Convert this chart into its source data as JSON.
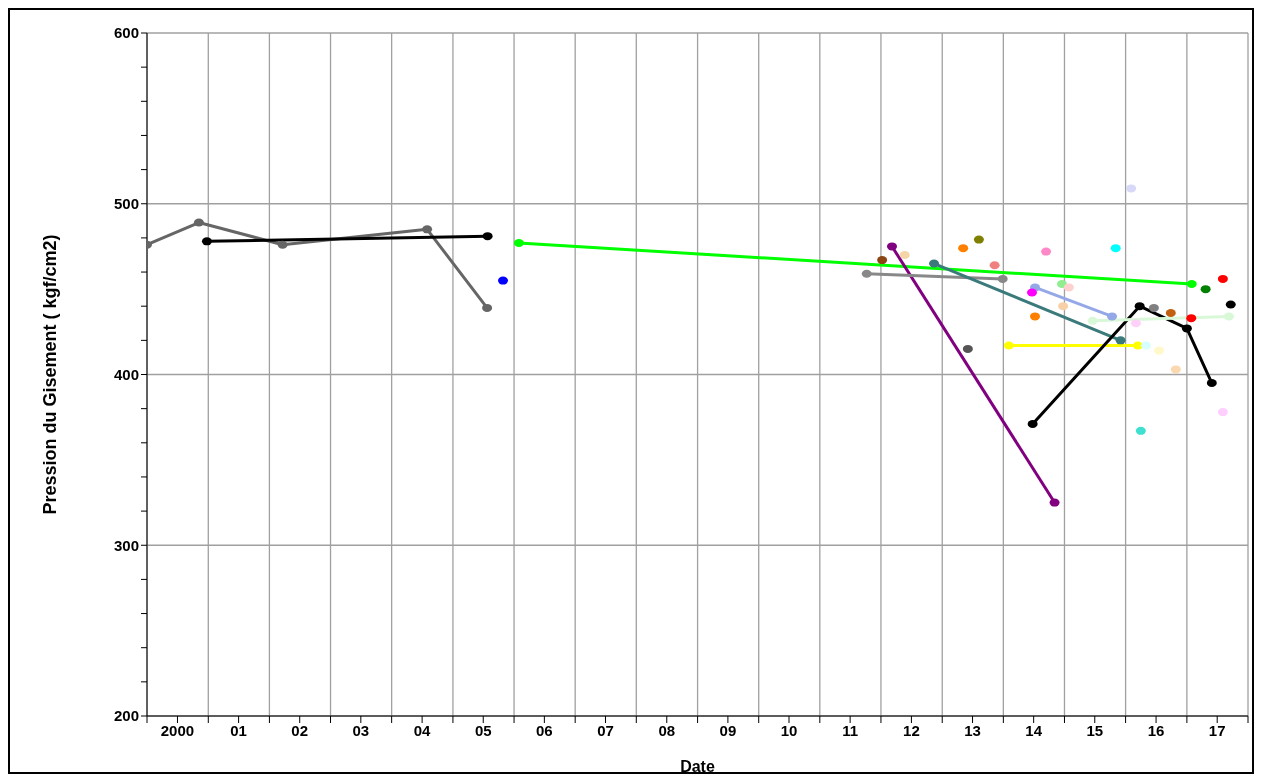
{
  "chart_data": {
    "type": "line",
    "xlabel": "Date",
    "ylabel": "Pression du Gisement ( kgf/cm2)",
    "xlim": [
      "2000-01-01",
      "2018-01-01"
    ],
    "xticks": [
      {
        "value": "2000-01-01",
        "label": null
      },
      {
        "value": "2000-07-01",
        "label": "2000"
      },
      {
        "value": "2001-01-01",
        "label": null
      },
      {
        "value": "2001-07-01",
        "label": "01"
      },
      {
        "value": "2002-01-01",
        "label": null
      },
      {
        "value": "2002-07-01",
        "label": "02"
      },
      {
        "value": "2003-01-01",
        "label": null
      },
      {
        "value": "2003-07-01",
        "label": "03"
      },
      {
        "value": "2004-01-01",
        "label": null
      },
      {
        "value": "2004-07-01",
        "label": "04"
      },
      {
        "value": "2005-01-01",
        "label": null
      },
      {
        "value": "2005-07-01",
        "label": "05"
      },
      {
        "value": "2006-01-01",
        "label": null
      },
      {
        "value": "2006-07-01",
        "label": "06"
      },
      {
        "value": "2007-01-01",
        "label": null
      },
      {
        "value": "2007-07-01",
        "label": "07"
      },
      {
        "value": "2008-01-01",
        "label": null
      },
      {
        "value": "2008-07-01",
        "label": "08"
      },
      {
        "value": "2009-01-01",
        "label": null
      },
      {
        "value": "2009-07-01",
        "label": "09"
      },
      {
        "value": "2010-01-01",
        "label": null
      },
      {
        "value": "2010-07-01",
        "label": "10"
      },
      {
        "value": "2011-01-01",
        "label": null
      },
      {
        "value": "2011-07-01",
        "label": "11"
      },
      {
        "value": "2012-01-01",
        "label": null
      },
      {
        "value": "2012-07-01",
        "label": "12"
      },
      {
        "value": "2013-01-01",
        "label": null
      },
      {
        "value": "2013-07-01",
        "label": "13"
      },
      {
        "value": "2014-01-01",
        "label": null
      },
      {
        "value": "2014-07-01",
        "label": "14"
      },
      {
        "value": "2015-01-01",
        "label": null
      },
      {
        "value": "2015-07-01",
        "label": "15"
      },
      {
        "value": "2016-01-01",
        "label": null
      },
      {
        "value": "2016-07-01",
        "label": "16"
      },
      {
        "value": "2017-01-01",
        "label": null
      },
      {
        "value": "2017-07-01",
        "label": "17"
      },
      {
        "value": "2018-01-01",
        "label": null
      }
    ],
    "ylim": [
      200,
      600
    ],
    "yticks": [
      200,
      {
        "value": 220,
        "label": null
      },
      {
        "value": 240,
        "label": null
      },
      {
        "value": 260,
        "label": null
      },
      {
        "value": 280,
        "label": null
      },
      300,
      {
        "value": 320,
        "label": null
      },
      {
        "value": 340,
        "label": null
      },
      {
        "value": 360,
        "label": null
      },
      {
        "value": 380,
        "label": null
      },
      400,
      {
        "value": 420,
        "label": null
      },
      {
        "value": 440,
        "label": null
      },
      {
        "value": 460,
        "label": null
      },
      {
        "value": 480,
        "label": null
      },
      500,
      {
        "value": 520,
        "label": null
      },
      {
        "value": 540,
        "label": null
      },
      {
        "value": 560,
        "label": null
      },
      {
        "value": 580,
        "label": null
      },
      600
    ],
    "grid": true,
    "marker": "circle",
    "line_style": "solid",
    "series": [
      {
        "color": "#666666",
        "x": [
          "2000-01-01",
          "2000-11-06",
          "2002-03-21",
          "2004-07-31",
          "2005-07-24"
        ],
        "values": [
          476,
          489,
          476,
          485,
          439
        ]
      },
      {
        "color": "#000000",
        "x": [
          "2000-12-24",
          "2005-07-27"
        ],
        "values": [
          478,
          481
        ]
      },
      {
        "type": "scatter",
        "color": "#0000ff",
        "x": [
          "2005-10-27"
        ],
        "values": [
          455
        ]
      },
      {
        "color": "#00ff00",
        "x": [
          "2006-01-30",
          "2017-01-30"
        ],
        "values": [
          477,
          453
        ]
      },
      {
        "color": "#800080",
        "x": [
          "2012-03-07",
          "2014-11-03"
        ],
        "values": [
          475,
          325
        ]
      },
      {
        "type": "scatter",
        "color": "#8b4513",
        "x": [
          "2012-01-08"
        ],
        "values": [
          467
        ]
      },
      {
        "type": "scatter",
        "color": "#f5d5a8",
        "x": [
          "2012-05-22"
        ],
        "values": [
          470
        ]
      },
      {
        "color": "#888888",
        "x": [
          "2011-10-08",
          "2013-12-28"
        ],
        "values": [
          459,
          456
        ]
      },
      {
        "color": "#3a7a7a",
        "x": [
          "2012-11-13",
          "2015-12-02"
        ],
        "values": [
          465,
          420
        ]
      },
      {
        "type": "scatter",
        "color": "#ff8000",
        "x": [
          "2013-05-06",
          "2014-07-09"
        ],
        "values": [
          474,
          434
        ]
      },
      {
        "type": "scatter",
        "color": "#808000",
        "x": [
          "2013-08-08"
        ],
        "values": [
          479
        ]
      },
      {
        "type": "scatter",
        "color": "#f08080",
        "x": [
          "2013-11-10"
        ],
        "values": [
          464
        ]
      },
      {
        "type": "scatter",
        "color": "#555555",
        "x": [
          "2013-06-03"
        ],
        "values": [
          415
        ]
      },
      {
        "type": "scatter",
        "color": "#ff88c8",
        "x": [
          "2014-09-13"
        ],
        "values": [
          472
        ]
      },
      {
        "color": "#94a8e8",
        "x": [
          "2014-07-09",
          "2015-10-12"
        ],
        "values": [
          451,
          434
        ]
      },
      {
        "type": "scatter",
        "color": "#ff00ff",
        "x": [
          "2014-06-21"
        ],
        "values": [
          448
        ]
      },
      {
        "color": "#ffff00",
        "x": [
          "2014-02-03",
          "2016-03-14"
        ],
        "values": [
          417,
          417
        ]
      },
      {
        "type": "scatter",
        "color": "#90ee90",
        "x": [
          "2014-12-17"
        ],
        "values": [
          453
        ]
      },
      {
        "type": "scatter",
        "color": "#ffd0d0",
        "x": [
          "2015-01-27"
        ],
        "values": [
          451
        ]
      },
      {
        "type": "scatter",
        "color": "#f8d0a8",
        "x": [
          "2014-12-24"
        ],
        "values": [
          440
        ]
      },
      {
        "type": "scatter",
        "color": "#00ffff",
        "x": [
          "2015-11-03"
        ],
        "values": [
          474
        ]
      },
      {
        "type": "scatter",
        "color": "#d8d8f8",
        "x": [
          "2016-02-03"
        ],
        "values": [
          509
        ]
      },
      {
        "color": "#000000",
        "x": [
          "2014-06-25",
          "2016-03-25",
          "2017-01-01",
          "2017-05-30"
        ],
        "values": [
          371,
          440,
          427,
          395
        ]
      },
      {
        "type": "scatter",
        "color": "#808080",
        "x": [
          "2016-06-18"
        ],
        "values": [
          439
        ]
      },
      {
        "type": "scatter",
        "color": "#c06010",
        "x": [
          "2016-09-27"
        ],
        "values": [
          436
        ]
      },
      {
        "type": "scatter",
        "color": "#ff0000",
        "x": [
          "2017-01-27",
          "2017-08-04"
        ],
        "values": [
          433,
          456
        ]
      },
      {
        "type": "scatter",
        "color": "#008000",
        "x": [
          "2017-04-23"
        ],
        "values": [
          450
        ]
      },
      {
        "type": "scatter",
        "color": "#000000",
        "x": [
          "2017-09-20"
        ],
        "values": [
          441
        ]
      },
      {
        "color": "#d8f8d8",
        "x": [
          "2015-06-18",
          "2017-09-09"
        ],
        "values": [
          431.5,
          434
        ]
      },
      {
        "type": "scatter",
        "color": "#ffd0f8",
        "x": [
          "2016-03-03"
        ],
        "values": [
          430
        ]
      },
      {
        "type": "scatter",
        "color": "#d8ffff",
        "x": [
          "2016-05-01"
        ],
        "values": [
          417
        ]
      },
      {
        "type": "scatter",
        "color": "#fff8c8",
        "x": [
          "2016-07-19"
        ],
        "values": [
          414
        ]
      },
      {
        "type": "scatter",
        "color": "#fbd8b0",
        "x": [
          "2016-10-27"
        ],
        "values": [
          403
        ]
      },
      {
        "type": "scatter",
        "color": "#40e0d0",
        "x": [
          "2016-04-01"
        ],
        "values": [
          367
        ]
      },
      {
        "type": "scatter",
        "color": "#ffd0ff",
        "x": [
          "2017-08-04"
        ],
        "values": [
          378
        ]
      }
    ]
  }
}
